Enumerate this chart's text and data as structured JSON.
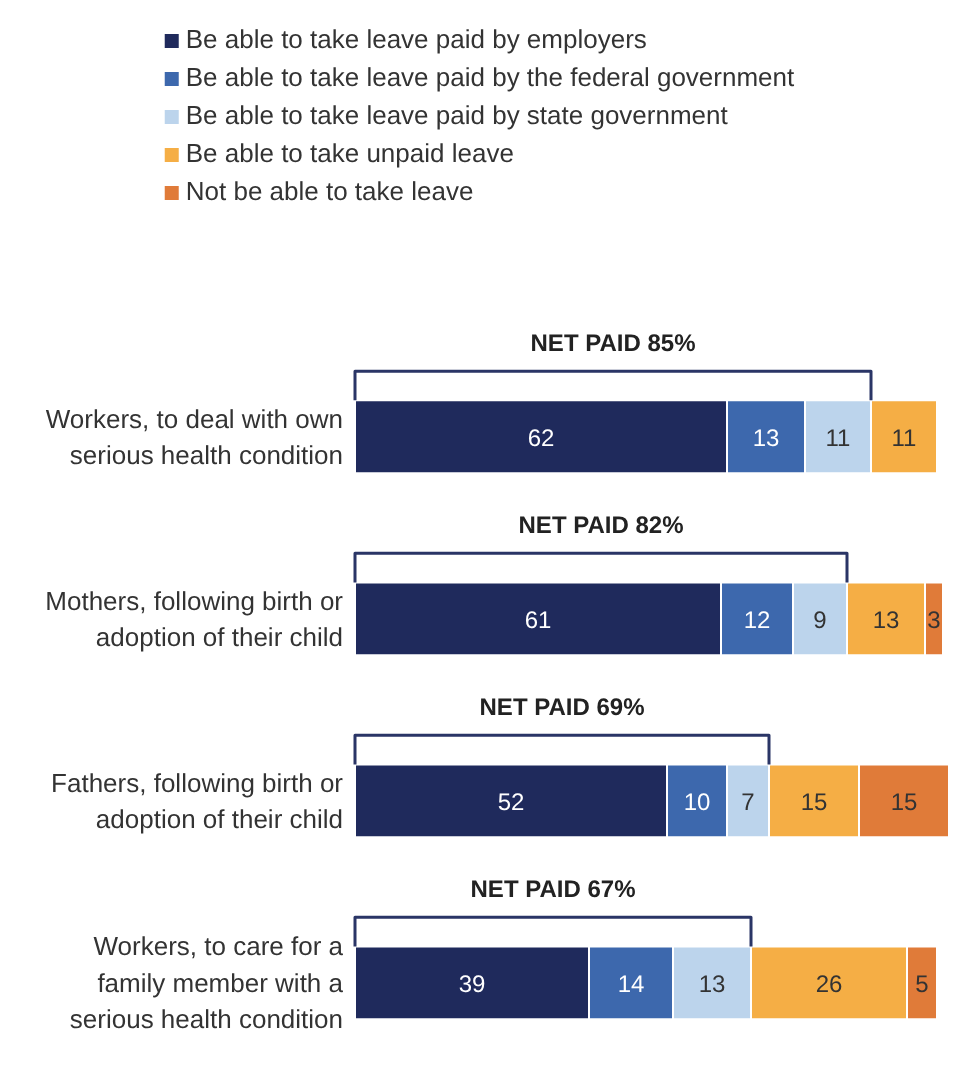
{
  "chart_data": {
    "type": "bar",
    "orientation": "horizontal",
    "stacked": true,
    "data_labels": true,
    "legend": "top",
    "categories": [
      "Workers, to deal with own serious health condition",
      "Mothers, following birth or adoption of their child",
      "Fathers, following birth or adoption of their child",
      "Workers, to care for a family member with a serious health condition"
    ],
    "series": [
      {
        "name": "Be able to take leave paid by employers",
        "color": "#1f2a5c",
        "values": [
          62,
          61,
          52,
          39
        ]
      },
      {
        "name": "Be able to take leave paid by the federal government",
        "color": "#3d68ad",
        "values": [
          13,
          12,
          10,
          14
        ]
      },
      {
        "name": "Be able to take leave paid by state government",
        "color": "#bcd4ec",
        "values": [
          11,
          9,
          7,
          13
        ]
      },
      {
        "name": "Be able to take unpaid leave",
        "color": "#f5ae45",
        "values": [
          11,
          13,
          15,
          26
        ]
      },
      {
        "name": "Not be able to take leave",
        "color": "#e07b39",
        "values": [
          null,
          3,
          15,
          5
        ]
      }
    ],
    "annotations": [
      "NET PAID 85%",
      "NET PAID 82%",
      "NET PAID 69%",
      "NET PAID 67%"
    ]
  }
}
